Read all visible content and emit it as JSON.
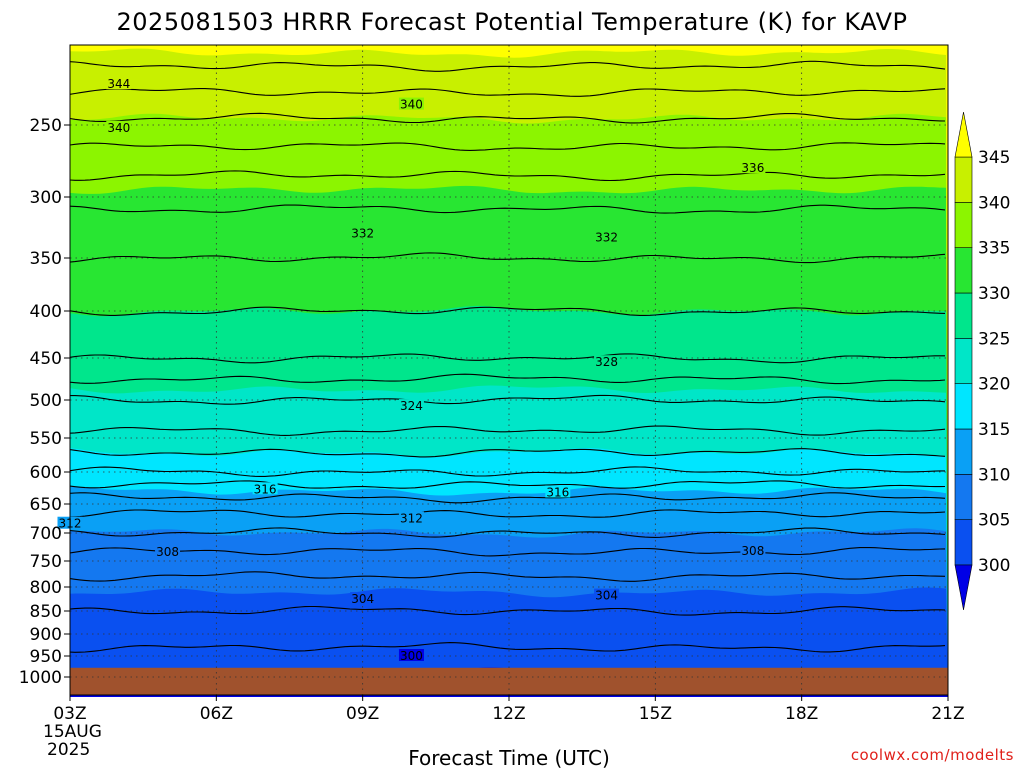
{
  "chart_data": {
    "type": "heatmap",
    "title": "2025081503 HRRR Forecast Potential Temperature (K) for KAVP",
    "xlabel": "Forecast Time (UTC)",
    "ylabel": "",
    "x_ticks": [
      "03Z",
      "06Z",
      "09Z",
      "12Z",
      "15Z",
      "18Z",
      "21Z"
    ],
    "x_date_label": [
      "15AUG",
      "2025"
    ],
    "y_ticks": [
      250,
      300,
      350,
      400,
      450,
      500,
      550,
      600,
      650,
      700,
      750,
      800,
      850,
      900,
      950,
      1000
    ],
    "y_scale": "log-pressure",
    "y_range": [
      1000,
      200
    ],
    "surface_pressure": 978,
    "colorbar": {
      "levels": [
        300,
        305,
        310,
        315,
        320,
        325,
        330,
        335,
        340,
        345
      ],
      "colors": [
        "#0000e6",
        "#0a50f0",
        "#1478f0",
        "#0aa0f5",
        "#00e6ff",
        "#00e6c8",
        "#00e68c",
        "#28e632",
        "#8cf500",
        "#c8f000",
        "#ffff00"
      ]
    },
    "theta_profile": [
      {
        "p": 1000,
        "theta": 299.5
      },
      {
        "p": 950,
        "theta": 301.5
      },
      {
        "p": 900,
        "theta": 302.8
      },
      {
        "p": 850,
        "theta": 304.0
      },
      {
        "p": 800,
        "theta": 305.3
      },
      {
        "p": 750,
        "theta": 307.0
      },
      {
        "p": 700,
        "theta": 310.0
      },
      {
        "p": 650,
        "theta": 313.0
      },
      {
        "p": 600,
        "theta": 318.0
      },
      {
        "p": 550,
        "theta": 321.5
      },
      {
        "p": 500,
        "theta": 324.0
      },
      {
        "p": 450,
        "theta": 328.0
      },
      {
        "p": 400,
        "theta": 330.0
      },
      {
        "p": 350,
        "theta": 332.0
      },
      {
        "p": 300,
        "theta": 334.5
      },
      {
        "p": 250,
        "theta": 339.5
      },
      {
        "p": 200,
        "theta": 346.0
      }
    ],
    "contour_labels": [
      {
        "text": "344",
        "time": "04Z",
        "p": 226
      },
      {
        "text": "340",
        "time": "10Z",
        "p": 238
      },
      {
        "text": "340",
        "time": "04Z",
        "p": 252
      },
      {
        "text": "336",
        "time": "17Z",
        "p": 280
      },
      {
        "text": "332",
        "time": "09Z",
        "p": 330
      },
      {
        "text": "332",
        "time": "14Z",
        "p": 333
      },
      {
        "text": "328",
        "time": "14Z",
        "p": 455
      },
      {
        "text": "324",
        "time": "10Z",
        "p": 508
      },
      {
        "text": "316",
        "time": "07Z",
        "p": 627
      },
      {
        "text": "316",
        "time": "13Z",
        "p": 632
      },
      {
        "text": "312",
        "time": "03Z",
        "p": 684
      },
      {
        "text": "312",
        "time": "10Z",
        "p": 675
      },
      {
        "text": "308",
        "time": "05Z",
        "p": 734
      },
      {
        "text": "308",
        "time": "17Z",
        "p": 732
      },
      {
        "text": "304",
        "time": "09Z",
        "p": 825
      },
      {
        "text": "304",
        "time": "14Z",
        "p": 818
      },
      {
        "text": "300",
        "time": "10Z",
        "p": 950
      }
    ],
    "grid": true
  },
  "source": "coolwx.com/modelts"
}
